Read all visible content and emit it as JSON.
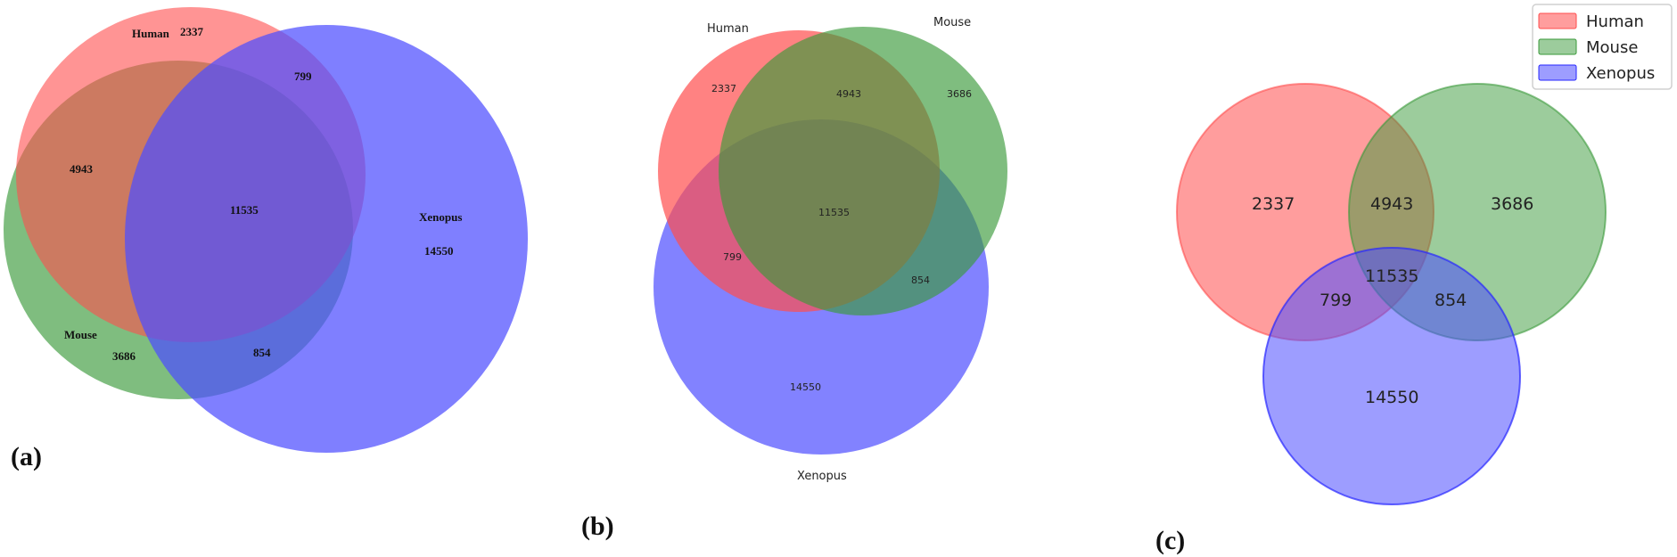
{
  "sets": {
    "human": "Human",
    "mouse": "Mouse",
    "xenopus": "Xenopus"
  },
  "counts": {
    "human_only": "2337",
    "mouse_only": "3686",
    "xenopus_only": "14550",
    "human_mouse": "4943",
    "human_xenopus": "799",
    "mouse_xenopus": "854",
    "all_three": "11535"
  },
  "panels": {
    "a": "(a)",
    "b": "(b)",
    "c": "(c)"
  },
  "legend": [
    {
      "label": "Human",
      "color": "#ff6666"
    },
    {
      "label": "Mouse",
      "color": "#5cb35c"
    },
    {
      "label": "Xenopus",
      "color": "#6666ff"
    }
  ],
  "colors": {
    "human": "#ff4d4d",
    "mouse": "#3a9a3a",
    "xenopus": "#4d4dff"
  }
}
